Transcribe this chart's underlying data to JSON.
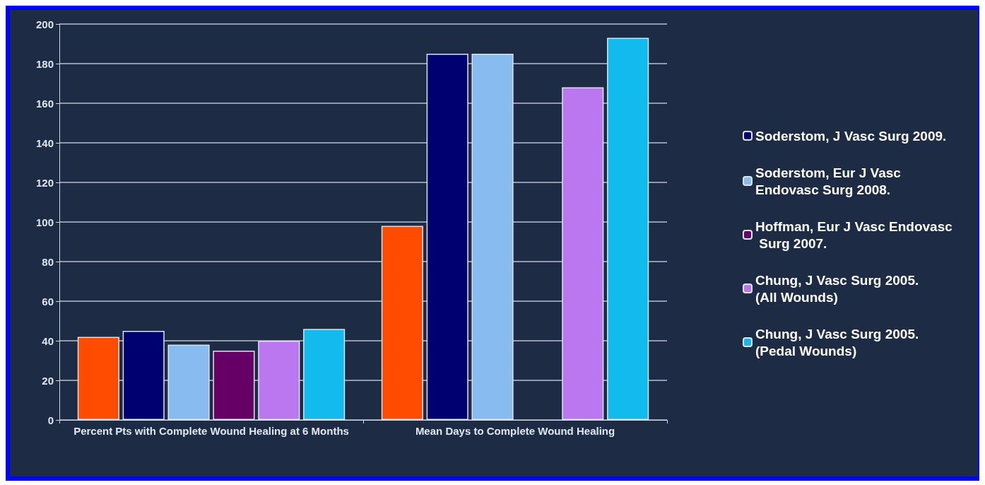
{
  "chart_data": {
    "type": "bar",
    "categories": [
      "Percent Pts with Complete Wound Healing at 6 Months",
      "Mean Days to Complete Wound Healing"
    ],
    "series": [
      {
        "color": "#ff4c00",
        "values": [
          42,
          98
        ]
      },
      {
        "name": "Soderstom, J Vasc Surg 2009.",
        "color": "#000070",
        "values": [
          45,
          185
        ]
      },
      {
        "name": "Soderstom, Eur J Vasc Endovasc Surg 2008.",
        "color": "#88bbf0",
        "values": [
          38,
          185
        ]
      },
      {
        "name": "Hoffman, Eur J Vasc Endovasc Surg 2007.",
        "color": "#660066",
        "values": [
          35,
          null
        ]
      },
      {
        "name": "Chung, J Vasc Surg 2005. (All Wounds)",
        "color": "#bb77f0",
        "values": [
          40,
          168
        ]
      },
      {
        "name": "Chung, J Vasc Surg 2005. (Pedal Wounds)",
        "color": "#11bbee",
        "values": [
          46,
          193
        ]
      }
    ],
    "ylim": [
      0,
      200
    ],
    "yticks": [
      0,
      20,
      40,
      60,
      80,
      100,
      120,
      140,
      160,
      180,
      200
    ],
    "grid": "y",
    "legend": "right"
  }
}
